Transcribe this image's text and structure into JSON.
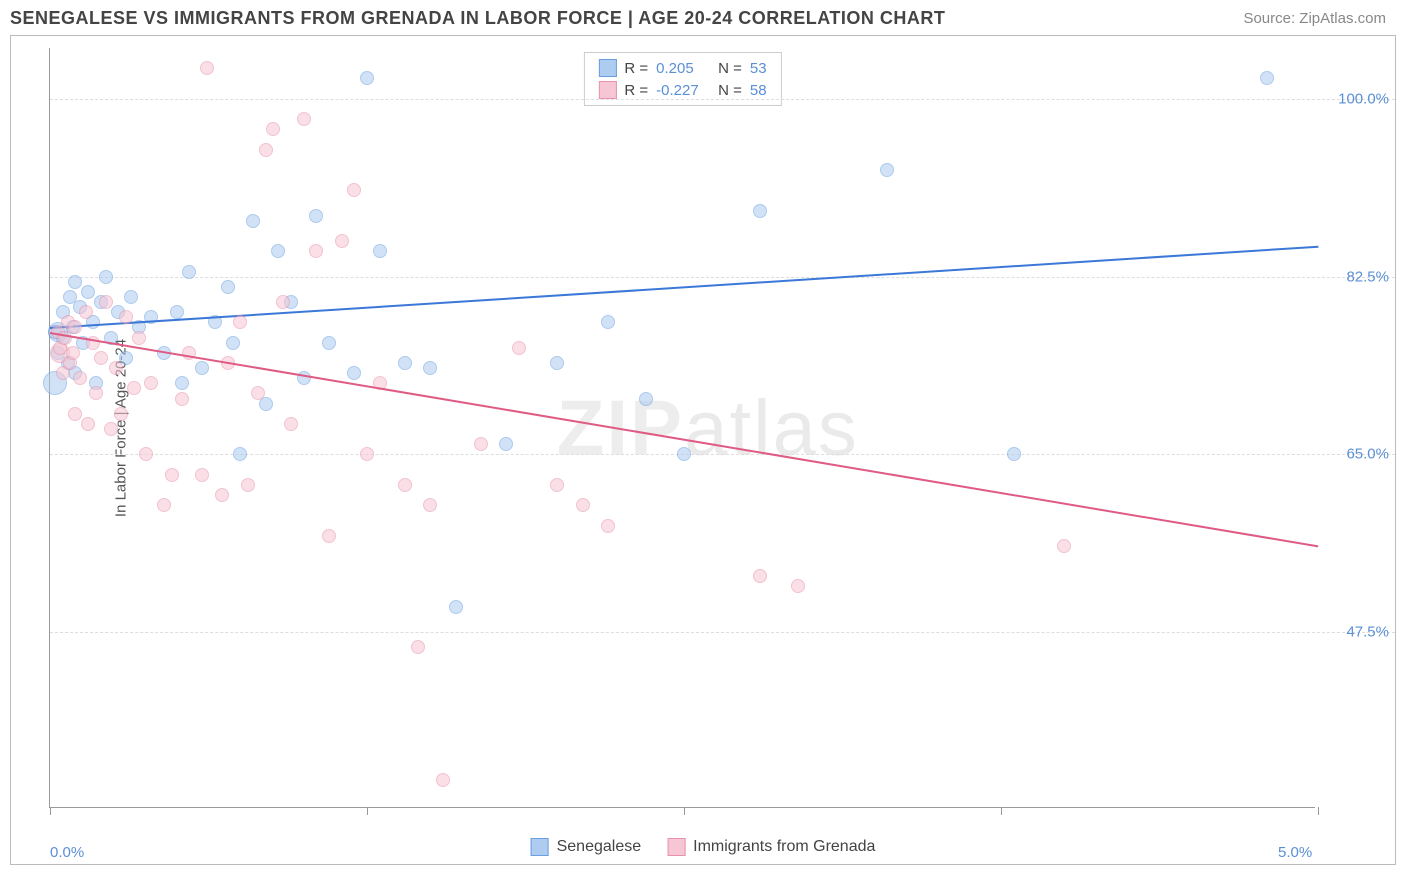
{
  "title": "SENEGALESE VS IMMIGRANTS FROM GRENADA IN LABOR FORCE | AGE 20-24 CORRELATION CHART",
  "source": "Source: ZipAtlas.com",
  "watermark": "ZIPatlas",
  "chart": {
    "type": "scatter",
    "xlim": [
      0,
      5
    ],
    "ylim": [
      30,
      105
    ],
    "x_ticks": [
      0,
      1.25,
      2.5,
      3.75,
      5
    ],
    "x_tick_labels": {
      "0": "0.0%",
      "5": "5.0%"
    },
    "y_grid": [
      47.5,
      65.0,
      82.5,
      100.0
    ],
    "y_tick_labels": [
      "47.5%",
      "65.0%",
      "82.5%",
      "100.0%"
    ],
    "y_axis_label": "In Labor Force | Age 20-24",
    "background_color": "#ffffff",
    "grid_color": "#dddddd",
    "axis_color": "#999999",
    "tick_label_color": "#5b8fd6",
    "marker_radius": 7,
    "marker_stroke_width": 1.2,
    "series": [
      {
        "name": "Senegalese",
        "fill": "#aeccf0",
        "stroke": "#6a9fe0",
        "fill_opacity": 0.55,
        "R": "0.205",
        "N": "53",
        "trend": {
          "color": "#3b78d8",
          "y_at_x0": 77.5,
          "y_at_x5": 85.5,
          "width": 2
        },
        "points": [
          [
            0.02,
            77
          ],
          [
            0.03,
            75
          ],
          [
            0.05,
            79
          ],
          [
            0.05,
            76.5
          ],
          [
            0.07,
            74
          ],
          [
            0.08,
            80.5
          ],
          [
            0.09,
            77.5
          ],
          [
            0.1,
            73
          ],
          [
            0.1,
            82
          ],
          [
            0.12,
            79.5
          ],
          [
            0.13,
            76
          ],
          [
            0.15,
            81
          ],
          [
            0.17,
            78
          ],
          [
            0.18,
            72
          ],
          [
            0.2,
            80
          ],
          [
            0.22,
            82.5
          ],
          [
            0.24,
            76.5
          ],
          [
            0.27,
            79
          ],
          [
            0.3,
            74.5
          ],
          [
            0.32,
            80.5
          ],
          [
            0.35,
            77.5
          ],
          [
            0.4,
            78.5
          ],
          [
            0.45,
            75
          ],
          [
            0.5,
            79
          ],
          [
            0.52,
            72
          ],
          [
            0.55,
            83
          ],
          [
            0.6,
            73.5
          ],
          [
            0.65,
            78
          ],
          [
            0.7,
            81.5
          ],
          [
            0.72,
            76
          ],
          [
            0.75,
            65
          ],
          [
            0.8,
            88
          ],
          [
            0.85,
            70
          ],
          [
            0.9,
            85
          ],
          [
            0.95,
            80
          ],
          [
            1.0,
            72.5
          ],
          [
            1.05,
            88.5
          ],
          [
            1.1,
            76
          ],
          [
            1.2,
            73
          ],
          [
            1.25,
            102
          ],
          [
            1.3,
            85
          ],
          [
            1.4,
            74
          ],
          [
            1.5,
            73.5
          ],
          [
            1.6,
            50
          ],
          [
            1.8,
            66
          ],
          [
            2.0,
            74
          ],
          [
            2.2,
            78
          ],
          [
            2.35,
            70.5
          ],
          [
            2.5,
            65
          ],
          [
            2.8,
            89
          ],
          [
            3.3,
            93
          ],
          [
            3.8,
            65
          ],
          [
            4.8,
            102
          ]
        ],
        "big_points": [
          [
            0.02,
            72,
            12
          ],
          [
            0.03,
            77,
            10
          ]
        ]
      },
      {
        "name": "Immigrants from Grenada",
        "fill": "#f6c6d4",
        "stroke": "#e892ab",
        "fill_opacity": 0.55,
        "R": "-0.227",
        "N": "58",
        "trend": {
          "color": "#e05b84",
          "y_at_x0": 77,
          "y_at_x5": 56,
          "width": 2
        },
        "points": [
          [
            0.03,
            77
          ],
          [
            0.04,
            75.5
          ],
          [
            0.05,
            73
          ],
          [
            0.06,
            76.5
          ],
          [
            0.07,
            78
          ],
          [
            0.08,
            74
          ],
          [
            0.09,
            75
          ],
          [
            0.1,
            69
          ],
          [
            0.1,
            77.5
          ],
          [
            0.12,
            72.5
          ],
          [
            0.14,
            79
          ],
          [
            0.15,
            68
          ],
          [
            0.17,
            76
          ],
          [
            0.18,
            71
          ],
          [
            0.2,
            74.5
          ],
          [
            0.22,
            80
          ],
          [
            0.24,
            67.5
          ],
          [
            0.26,
            73.5
          ],
          [
            0.28,
            69
          ],
          [
            0.3,
            78.5
          ],
          [
            0.33,
            71.5
          ],
          [
            0.35,
            76.5
          ],
          [
            0.38,
            65
          ],
          [
            0.4,
            72
          ],
          [
            0.45,
            60
          ],
          [
            0.48,
            63
          ],
          [
            0.52,
            70.5
          ],
          [
            0.55,
            75
          ],
          [
            0.6,
            63
          ],
          [
            0.62,
            103
          ],
          [
            0.68,
            61
          ],
          [
            0.7,
            74
          ],
          [
            0.75,
            78
          ],
          [
            0.78,
            62
          ],
          [
            0.82,
            71
          ],
          [
            0.85,
            95
          ],
          [
            0.88,
            97
          ],
          [
            0.92,
            80
          ],
          [
            0.95,
            68
          ],
          [
            1.0,
            98
          ],
          [
            1.05,
            85
          ],
          [
            1.1,
            57
          ],
          [
            1.15,
            86
          ],
          [
            1.2,
            91
          ],
          [
            1.25,
            65
          ],
          [
            1.3,
            72
          ],
          [
            1.4,
            62
          ],
          [
            1.45,
            46
          ],
          [
            1.5,
            60
          ],
          [
            1.55,
            33
          ],
          [
            1.7,
            66
          ],
          [
            1.85,
            75.5
          ],
          [
            2.0,
            62
          ],
          [
            2.1,
            60
          ],
          [
            2.2,
            58
          ],
          [
            2.8,
            53
          ],
          [
            2.95,
            52
          ],
          [
            4.0,
            56
          ]
        ],
        "big_points": [
          [
            0.04,
            75,
            10
          ]
        ]
      }
    ]
  },
  "legend_top": {
    "rows": [
      {
        "swatch_fill": "#aeccf0",
        "swatch_stroke": "#6a9fe0",
        "r_label": "R =",
        "r_val": "0.205",
        "n_label": "N =",
        "n_val": "53"
      },
      {
        "swatch_fill": "#f6c6d4",
        "swatch_stroke": "#e892ab",
        "r_label": "R =",
        "r_val": "-0.227",
        "n_label": "N =",
        "n_val": "58"
      }
    ]
  },
  "legend_bottom": {
    "items": [
      {
        "swatch_fill": "#aeccf0",
        "swatch_stroke": "#6a9fe0",
        "label": "Senegalese"
      },
      {
        "swatch_fill": "#f6c6d4",
        "swatch_stroke": "#e892ab",
        "label": "Immigrants from Grenada"
      }
    ]
  }
}
